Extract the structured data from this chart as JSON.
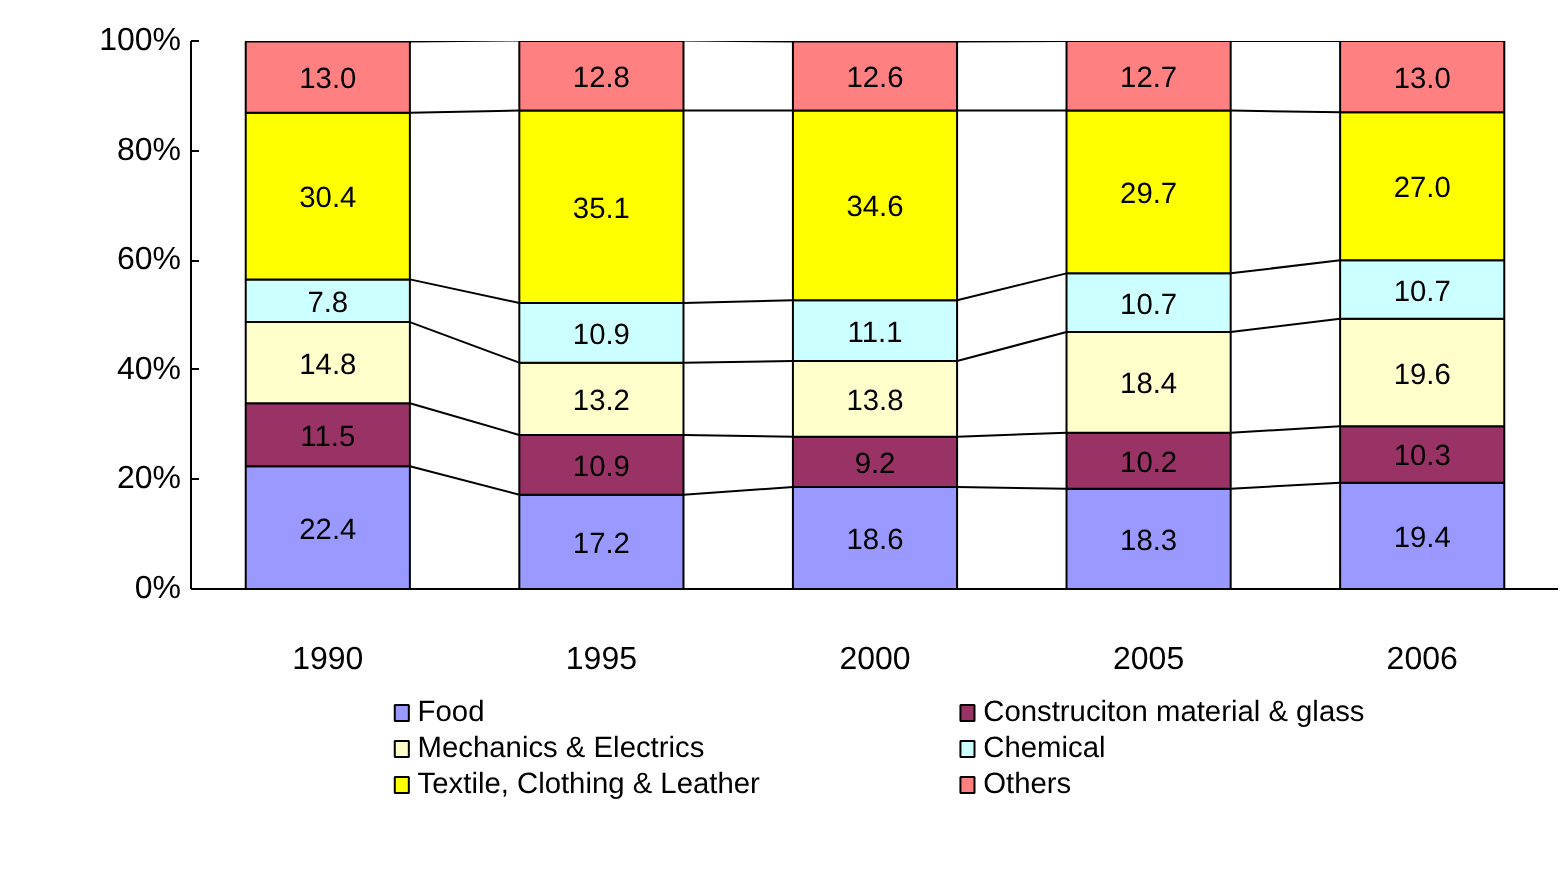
{
  "chart_data": {
    "type": "bar",
    "stacked": true,
    "grid": false,
    "legend": "bottom",
    "categories": [
      "1990",
      "1995",
      "2000",
      "2005",
      "2006"
    ],
    "ylim": [
      0,
      100
    ],
    "yticks": [
      {
        "value": 0,
        "label": "0%"
      },
      {
        "value": 20,
        "label": "20%"
      },
      {
        "value": 40,
        "label": "40%"
      },
      {
        "value": 60,
        "label": "60%"
      },
      {
        "value": 80,
        "label": "80%"
      },
      {
        "value": 100,
        "label": "100%"
      }
    ],
    "series": [
      {
        "name": "Food",
        "color": "#9999ff",
        "values": [
          22.4,
          17.2,
          18.6,
          18.3,
          19.4
        ],
        "value_labels": [
          "22.4",
          "17.2",
          "18.6",
          "18.3",
          "19.4"
        ]
      },
      {
        "name": "Construciton material & glass",
        "color": "#993366",
        "values": [
          11.5,
          10.9,
          9.2,
          10.2,
          10.3
        ],
        "value_labels": [
          "11.5",
          "10.9",
          "9.2",
          "10.2",
          "10.3"
        ]
      },
      {
        "name": "Mechanics & Electrics",
        "color": "#ffffcc",
        "values": [
          14.8,
          13.2,
          13.8,
          18.4,
          19.6
        ],
        "value_labels": [
          "14.8",
          "13.2",
          "13.8",
          "18.4",
          "19.6"
        ]
      },
      {
        "name": "Chemical",
        "color": "#ccffff",
        "values": [
          7.8,
          10.9,
          11.1,
          10.7,
          10.7
        ],
        "value_labels": [
          "7.8",
          "10.9",
          "11.1",
          "10.7",
          "10.7"
        ]
      },
      {
        "name": "Textile, Clothing & Leather",
        "color": "#ffff00",
        "values": [
          30.4,
          35.1,
          34.6,
          29.7,
          27.0
        ],
        "value_labels": [
          "30.4",
          "35.1",
          "34.6",
          "29.7",
          "27.0"
        ]
      },
      {
        "name": "Others",
        "color": "#ff8080",
        "values": [
          13.0,
          12.8,
          12.6,
          12.7,
          13.0
        ],
        "value_labels": [
          "13.0",
          "12.8",
          "12.6",
          "12.7",
          "13.0"
        ]
      }
    ]
  }
}
